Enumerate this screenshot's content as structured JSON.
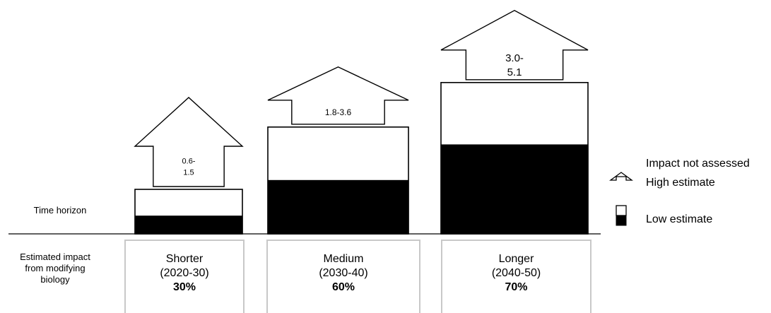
{
  "row_labels": {
    "time_horizon": "Time horizon",
    "impact_line1": "Estimated impact",
    "impact_line2": "from modifying",
    "impact_line3": "biology"
  },
  "legend": {
    "not_assessed": "Impact not assessed",
    "high": "High estimate",
    "low": "Low estimate"
  },
  "periods": [
    {
      "name": "Shorter",
      "years": "(2020-30)",
      "share": "30%"
    },
    {
      "name": "Medium",
      "years": "(2030-40)",
      "share": "60%"
    },
    {
      "name": "Longer",
      "years": "(2040-50)",
      "share": "70%"
    }
  ],
  "chart_data": {
    "type": "bar",
    "stacked": true,
    "categories": [
      "Shorter",
      "Medium",
      "Longer"
    ],
    "series": [
      {
        "name": "Low estimate",
        "values": [
          0.6,
          1.8,
          3.0
        ],
        "color": "#000000"
      },
      {
        "name": "High estimate",
        "values": [
          1.5,
          3.6,
          5.1
        ],
        "color": "#ffffff"
      }
    ],
    "arrow_labels": [
      [
        "0.6-",
        "1.5"
      ],
      [
        "1.8-3.6"
      ],
      [
        "3.0-",
        "5.1"
      ]
    ],
    "grid": false,
    "legend_position": "right"
  }
}
